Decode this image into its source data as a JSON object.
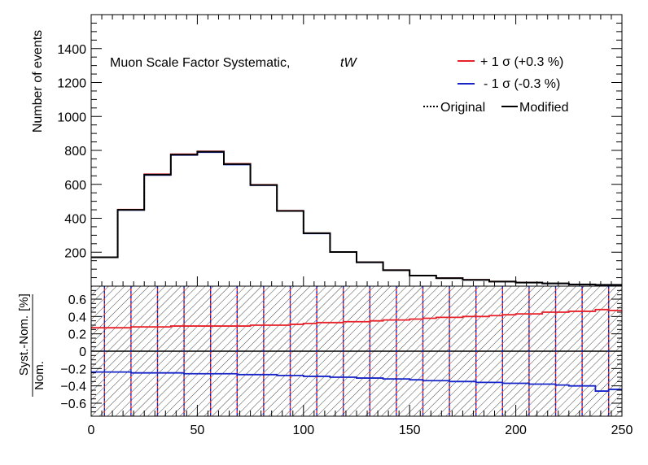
{
  "chart_data": [
    {
      "type": "line",
      "panel": "top",
      "title": "Muon Scale Factor Systematic,",
      "process_label": "tW",
      "ylabel": "Number of events",
      "xlim": [
        0,
        250
      ],
      "ylim": [
        0,
        1600
      ],
      "yticks": [
        200,
        400,
        600,
        800,
        1000,
        1200,
        1400
      ],
      "bin_edges": [
        0,
        12.5,
        25,
        37.5,
        50,
        62.5,
        75,
        87.5,
        100,
        112.5,
        125,
        137.5,
        150,
        162.5,
        175,
        187.5,
        200,
        212.5,
        225,
        237.5,
        250
      ],
      "series": [
        {
          "name": "+ 1 σ (+0.3 %)",
          "color": "#e8202a",
          "values": [
            170,
            452,
            660,
            778,
            795,
            722,
            598,
            445,
            313,
            202,
            142,
            95,
            63,
            48,
            38,
            28,
            22,
            16,
            10,
            8
          ]
        },
        {
          "name": "- 1 σ (-0.3 %)",
          "color": "#1624c8",
          "values": [
            169,
            448,
            654,
            772,
            789,
            716,
            594,
            442,
            310,
            200,
            140,
            94,
            62,
            47,
            37,
            27,
            21,
            15,
            9,
            7
          ]
        },
        {
          "name": "Original",
          "color": "#000000",
          "style": "dotted",
          "values": [
            170,
            450,
            657,
            775,
            792,
            719,
            596,
            443,
            312,
            201,
            141,
            94,
            62,
            47,
            37,
            27,
            21,
            16,
            10,
            8
          ]
        },
        {
          "name": "Modified",
          "color": "#000000",
          "style": "solid",
          "values": [
            170,
            450,
            657,
            775,
            792,
            719,
            596,
            443,
            312,
            201,
            141,
            94,
            62,
            47,
            37,
            27,
            21,
            16,
            10,
            8
          ]
        }
      ],
      "legend_position": "top-right",
      "legend_row3": [
        "Original",
        "Modified"
      ]
    },
    {
      "type": "line",
      "panel": "bottom",
      "ylabel_num": "Syst.-Nom.",
      "ylabel_den": "Nom.",
      "ylabel_unit": "[%]",
      "xlim": [
        0,
        250
      ],
      "ylim": [
        -0.75,
        0.75
      ],
      "xticks": [
        0,
        50,
        100,
        150,
        200,
        250
      ],
      "yticks": [
        -0.6,
        -0.4,
        -0.2,
        0,
        0.2,
        0.4,
        0.6
      ],
      "ytick_labels": [
        "−0.6",
        "−0.4",
        "−0.2",
        "0",
        "0.2",
        "0.4",
        "0.6"
      ],
      "bin_edges": [
        0,
        6.25,
        12.5,
        18.75,
        25,
        31.25,
        37.5,
        43.75,
        50,
        56.25,
        62.5,
        68.75,
        75,
        81.25,
        87.5,
        93.75,
        100,
        106.25,
        112.5,
        118.75,
        125,
        131.25,
        137.5,
        143.75,
        150,
        156.25,
        162.5,
        168.75,
        175,
        181.25,
        187.5,
        193.75,
        200,
        206.25,
        212.5,
        218.75,
        225,
        231.25,
        237.5,
        243.75,
        250
      ],
      "series": [
        {
          "name": "+ 1 σ",
          "color": "#e8202a",
          "values": [
            0.27,
            0.27,
            0.27,
            0.28,
            0.28,
            0.28,
            0.29,
            0.29,
            0.29,
            0.29,
            0.29,
            0.29,
            0.3,
            0.3,
            0.3,
            0.31,
            0.32,
            0.33,
            0.33,
            0.34,
            0.34,
            0.35,
            0.36,
            0.36,
            0.37,
            0.38,
            0.39,
            0.39,
            0.4,
            0.4,
            0.41,
            0.42,
            0.43,
            0.43,
            0.45,
            0.45,
            0.46,
            0.46,
            0.48,
            0.47
          ]
        },
        {
          "name": "- 1 σ",
          "color": "#1624c8",
          "values": [
            -0.24,
            -0.24,
            -0.24,
            -0.25,
            -0.25,
            -0.25,
            -0.25,
            -0.26,
            -0.26,
            -0.26,
            -0.26,
            -0.27,
            -0.27,
            -0.27,
            -0.28,
            -0.28,
            -0.29,
            -0.29,
            -0.3,
            -0.3,
            -0.31,
            -0.31,
            -0.32,
            -0.32,
            -0.33,
            -0.34,
            -0.34,
            -0.35,
            -0.35,
            -0.36,
            -0.36,
            -0.37,
            -0.37,
            -0.38,
            -0.38,
            -0.39,
            -0.4,
            -0.4,
            -0.46,
            -0.44
          ]
        }
      ],
      "uncertainty_band": "hatched",
      "dashed_bin_lines_x": [
        6.25,
        18.75,
        31.25,
        43.75,
        56.25,
        68.75,
        81.25,
        93.75,
        106.25,
        118.75,
        131.25,
        143.75,
        156.25,
        168.75,
        181.25,
        193.75,
        206.25,
        218.75,
        231.25,
        243.75
      ]
    }
  ]
}
